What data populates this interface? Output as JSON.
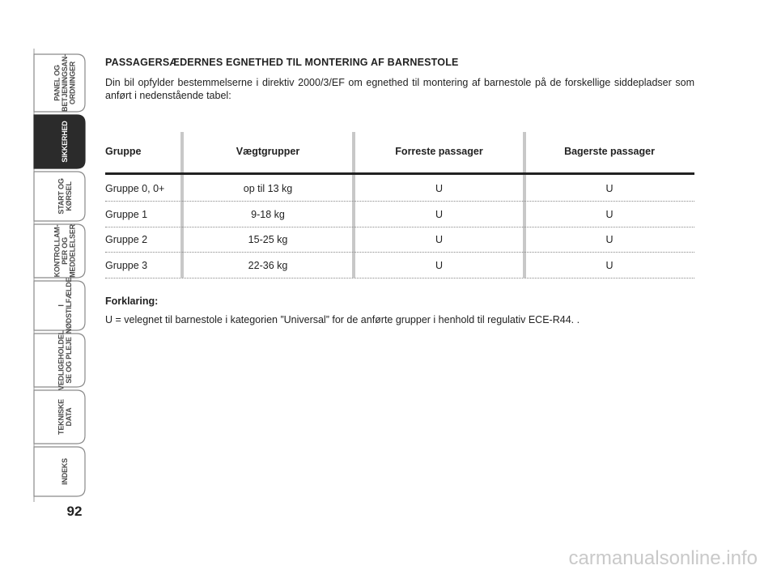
{
  "sidebar": {
    "tabs": [
      {
        "lines": [
          "PANEL OG",
          "BETJENINGSAN-",
          "ORDNINGER"
        ],
        "active": false
      },
      {
        "lines": [
          "SIKKERHED"
        ],
        "active": true
      },
      {
        "lines": [
          "START OG",
          "KØRSEL"
        ],
        "active": false
      },
      {
        "lines": [
          "KONTROLLAM-",
          "PER OG",
          "MEDDELELSER"
        ],
        "active": false
      },
      {
        "lines": [
          "I",
          "NØDSTILFÆLDE"
        ],
        "active": false
      },
      {
        "lines": [
          "VEDLIGEHOLDEL",
          "SE OG PLEJE"
        ],
        "active": false
      },
      {
        "lines": [
          "TEKNISKE",
          "DATA"
        ],
        "active": false
      },
      {
        "lines": [
          "INDEKS"
        ],
        "active": false
      }
    ],
    "page_number": "92"
  },
  "content": {
    "heading": "PASSAGERSÆDERNES EGNETHED TIL MONTERING AF BARNESTOLE",
    "intro": "Din bil opfylder bestemmelserne i direktiv 2000/3/EF om egnethed til montering af barnestole på de forskellige siddepladser som anført i nedenstående tabel:",
    "table": {
      "header": [
        "Gruppe",
        "Vægtgrupper",
        "Forreste passager",
        "Bagerste passager"
      ],
      "rows": [
        [
          "Gruppe 0, 0+",
          "op til 13 kg",
          "U",
          "U"
        ],
        [
          "Gruppe 1",
          "9-18 kg",
          "U",
          "U"
        ],
        [
          "Gruppe 2",
          "15-25 kg",
          "U",
          "U"
        ],
        [
          "Gruppe 3",
          "22-36 kg",
          "U",
          "U"
        ]
      ]
    },
    "legend_title": "Forklaring:",
    "legend_text": "U = velegnet til barnestole i kategorien ”Universal” for de anførte grupper i henhold til regulativ ECE-R44. ."
  },
  "watermark": "carmanualsonline.info"
}
